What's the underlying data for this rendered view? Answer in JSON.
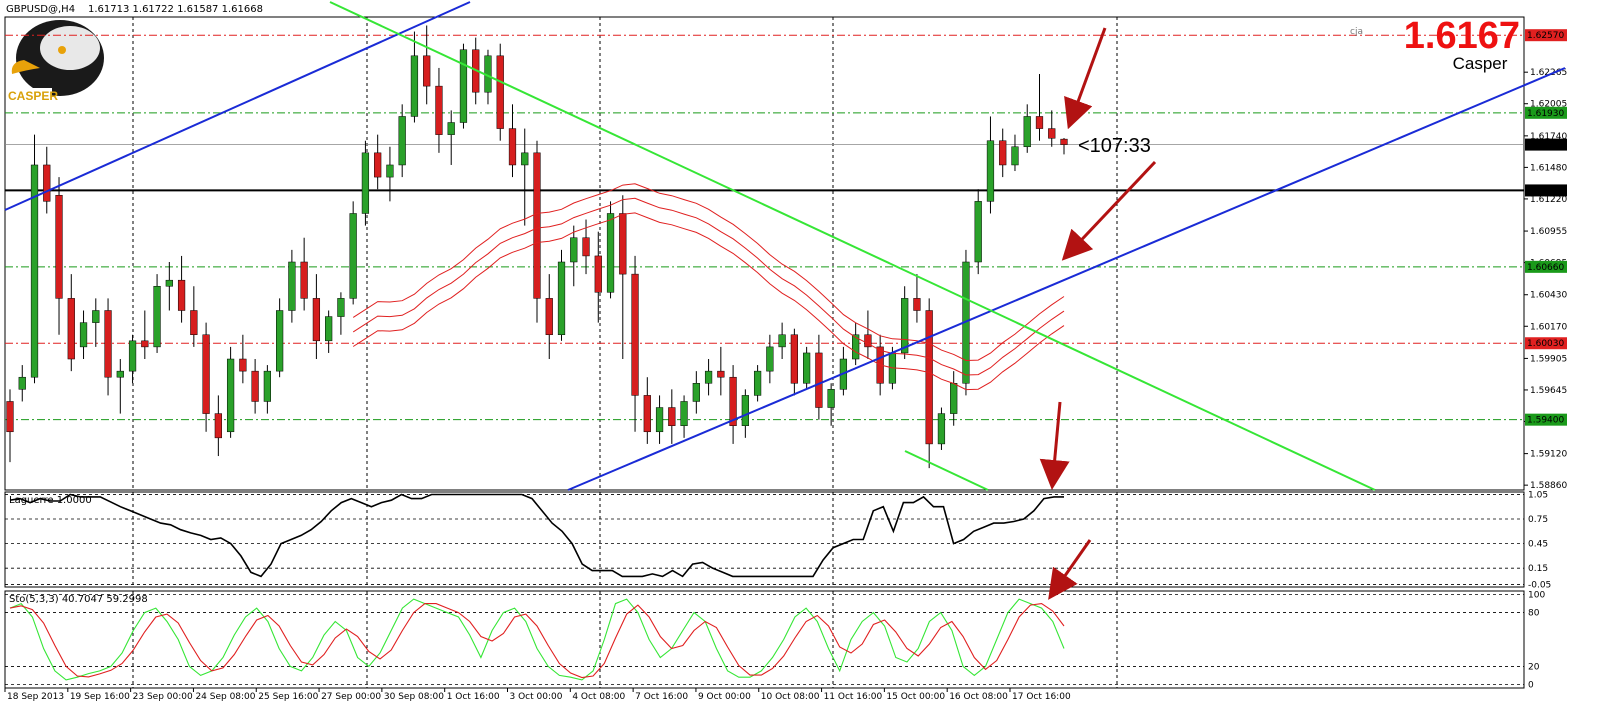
{
  "header": {
    "symbol": "GBPUSD@,H4",
    "ohlc": "1.61713 1.61722 1.61587 1.61668"
  },
  "logo": {
    "text": "CASPER"
  },
  "price_badge": {
    "value": "1.6167",
    "label": "Casper"
  },
  "timer": "<107:33",
  "cja": "cja",
  "colors": {
    "bull": "#2aa12a",
    "bear": "#d61e1e",
    "trend_blue": "#1a2bd6",
    "trend_green": "#36e636",
    "ma_red": "#e02020",
    "arrow": "#b21212",
    "level_red": "#e02020",
    "level_green": "#1a9a1a"
  },
  "price_levels": [
    {
      "label": "1.62570",
      "price": 1.6257,
      "color": "#e02020",
      "style": "dashdot"
    },
    {
      "label": "1.61930",
      "price": 1.6193,
      "color": "#1a9a1a",
      "style": "dashdot"
    },
    {
      "label": "1.61668",
      "price": 1.61668,
      "color": "#000000",
      "style": "current"
    },
    {
      "label": "1.61290",
      "price": 1.6129,
      "color": "#000000",
      "style": "solid"
    },
    {
      "label": "1.60660",
      "price": 1.6066,
      "color": "#1a9a1a",
      "style": "dashdot"
    },
    {
      "label": "1.60030",
      "price": 1.6003,
      "color": "#e02020",
      "style": "dashdot"
    },
    {
      "label": "1.59400",
      "price": 1.594,
      "color": "#1a9a1a",
      "style": "dashdot"
    }
  ],
  "price_ticks": [
    "1.62265",
    "1.62005",
    "1.61740",
    "1.61480",
    "1.61220",
    "1.60955",
    "1.60695",
    "1.60430",
    "1.60170",
    "1.59905",
    "1.59645",
    "1.59385",
    "1.59120",
    "1.58860"
  ],
  "laguerre": {
    "title": "Laguerre 1.0000",
    "ticks": [
      "1.05",
      "0.75",
      "0.45",
      "0.15",
      "-0.05"
    ],
    "values": [
      0.98,
      1.0,
      0.95,
      1.0,
      0.97,
      0.97,
      1.05,
      1.02,
      1.02,
      1.02,
      0.96,
      0.9,
      0.85,
      0.8,
      0.75,
      0.7,
      0.68,
      0.62,
      0.58,
      0.55,
      0.5,
      0.52,
      0.45,
      0.3,
      0.1,
      0.05,
      0.2,
      0.45,
      0.5,
      0.55,
      0.62,
      0.72,
      0.85,
      0.95,
      1.0,
      0.95,
      0.9,
      0.95,
      0.98,
      1.05,
      1.0,
      1.0,
      1.05,
      1.05,
      1.05,
      1.05,
      1.05,
      1.05,
      1.05,
      1.05,
      1.05,
      1.05,
      1.0,
      0.85,
      0.7,
      0.6,
      0.45,
      0.2,
      0.12,
      0.12,
      0.12,
      0.05,
      0.05,
      0.05,
      0.08,
      0.05,
      0.12,
      0.05,
      0.2,
      0.22,
      0.15,
      0.1,
      0.05,
      0.05,
      0.05,
      0.05,
      0.05,
      0.05,
      0.05,
      0.05,
      0.05,
      0.25,
      0.4,
      0.45,
      0.5,
      0.5,
      0.85,
      0.9,
      0.6,
      0.95,
      0.95,
      1.02,
      0.9,
      0.9,
      0.45,
      0.5,
      0.6,
      0.65,
      0.7,
      0.7,
      0.72,
      0.75,
      0.85,
      1.0,
      1.02,
      1.02
    ]
  },
  "stochastic": {
    "title": "Sto(5,3,3) 40.7047 59.2998",
    "ticks": [
      "100",
      "80",
      "20",
      "0"
    ],
    "main": [
      85,
      90,
      75,
      40,
      15,
      5,
      8,
      12,
      15,
      20,
      35,
      60,
      80,
      85,
      70,
      50,
      20,
      10,
      15,
      30,
      55,
      75,
      85,
      70,
      40,
      20,
      15,
      30,
      55,
      70,
      60,
      30,
      20,
      35,
      60,
      85,
      95,
      90,
      85,
      80,
      75,
      55,
      30,
      60,
      80,
      85,
      70,
      40,
      20,
      10,
      8,
      5,
      15,
      50,
      90,
      95,
      80,
      50,
      30,
      40,
      60,
      80,
      70,
      40,
      15,
      8,
      8,
      15,
      30,
      50,
      75,
      85,
      70,
      40,
      15,
      50,
      70,
      80,
      65,
      30,
      25,
      40,
      70,
      80,
      60,
      20,
      10,
      20,
      50,
      80,
      95,
      90,
      85,
      70,
      40
    ]
  },
  "time_labels": [
    "18 Sep 2013",
    "19 Sep 16:00",
    "23 Sep 00:00",
    "24 Sep 08:00",
    "25 Sep 16:00",
    "27 Sep 00:00",
    "30 Sep 08:00",
    "1 Oct 16:00",
    "3 Oct 00:00",
    "4 Oct 08:00",
    "7 Oct 16:00",
    "9 Oct 00:00",
    "10 Oct 08:00",
    "11 Oct 16:00",
    "15 Oct 00:00",
    "16 Oct 08:00",
    "17 Oct 16:00"
  ],
  "candles": [
    [
      1.5955,
      1.5965,
      1.5905,
      1.593
    ],
    [
      1.5965,
      1.5985,
      1.5955,
      1.5975
    ],
    [
      1.5975,
      1.6175,
      1.597,
      1.615
    ],
    [
      1.615,
      1.6165,
      1.611,
      1.612
    ],
    [
      1.6125,
      1.614,
      1.601,
      1.604
    ],
    [
      1.604,
      1.606,
      1.598,
      1.599
    ],
    [
      1.6,
      1.603,
      1.599,
      1.602
    ],
    [
      1.602,
      1.604,
      1.6,
      1.603
    ],
    [
      1.603,
      1.604,
      1.596,
      1.5975
    ],
    [
      1.5975,
      1.599,
      1.5945,
      1.598
    ],
    [
      1.598,
      1.601,
      1.597,
      1.6005
    ],
    [
      1.6005,
      1.603,
      1.599,
      1.6
    ],
    [
      1.6,
      1.606,
      1.5995,
      1.605
    ],
    [
      1.605,
      1.607,
      1.603,
      1.6055
    ],
    [
      1.6055,
      1.6075,
      1.602,
      1.603
    ],
    [
      1.603,
      1.605,
      1.6,
      1.601
    ],
    [
      1.601,
      1.602,
      1.593,
      1.5945
    ],
    [
      1.5945,
      1.596,
      1.591,
      1.5925
    ],
    [
      1.593,
      1.6,
      1.5925,
      1.599
    ],
    [
      1.599,
      1.601,
      1.597,
      1.598
    ],
    [
      1.598,
      1.599,
      1.5945,
      1.5955
    ],
    [
      1.5955,
      1.5985,
      1.5945,
      1.598
    ],
    [
      1.598,
      1.604,
      1.5975,
      1.603
    ],
    [
      1.603,
      1.608,
      1.602,
      1.607
    ],
    [
      1.607,
      1.609,
      1.603,
      1.604
    ],
    [
      1.604,
      1.606,
      1.599,
      1.6005
    ],
    [
      1.6005,
      1.603,
      1.5995,
      1.6025
    ],
    [
      1.6025,
      1.6045,
      1.601,
      1.604
    ],
    [
      1.604,
      1.612,
      1.6035,
      1.611
    ],
    [
      1.611,
      1.617,
      1.61,
      1.616
    ],
    [
      1.616,
      1.6175,
      1.613,
      1.614
    ],
    [
      1.614,
      1.6165,
      1.612,
      1.615
    ],
    [
      1.615,
      1.62,
      1.614,
      1.619
    ],
    [
      1.619,
      1.626,
      1.6185,
      1.624
    ],
    [
      1.624,
      1.6265,
      1.62,
      1.6215
    ],
    [
      1.6215,
      1.623,
      1.616,
      1.6175
    ],
    [
      1.6175,
      1.6195,
      1.615,
      1.6185
    ],
    [
      1.6185,
      1.625,
      1.618,
      1.6245
    ],
    [
      1.6245,
      1.6255,
      1.62,
      1.621
    ],
    [
      1.621,
      1.6245,
      1.62,
      1.624
    ],
    [
      1.624,
      1.625,
      1.617,
      1.618
    ],
    [
      1.618,
      1.62,
      1.614,
      1.615
    ],
    [
      1.615,
      1.618,
      1.61,
      1.616
    ],
    [
      1.616,
      1.617,
      1.602,
      1.604
    ],
    [
      1.604,
      1.606,
      1.599,
      1.601
    ],
    [
      1.601,
      1.608,
      1.6005,
      1.607
    ],
    [
      1.607,
      1.61,
      1.605,
      1.609
    ],
    [
      1.609,
      1.6105,
      1.606,
      1.6075
    ],
    [
      1.6075,
      1.6095,
      1.602,
      1.6045
    ],
    [
      1.6045,
      1.612,
      1.604,
      1.611
    ],
    [
      1.611,
      1.6125,
      1.599,
      1.606
    ],
    [
      1.606,
      1.6075,
      1.593,
      1.596
    ],
    [
      1.596,
      1.5975,
      1.592,
      1.593
    ],
    [
      1.593,
      1.596,
      1.592,
      1.595
    ],
    [
      1.595,
      1.5965,
      1.592,
      1.5935
    ],
    [
      1.5935,
      1.596,
      1.5925,
      1.5955
    ],
    [
      1.5955,
      1.598,
      1.5945,
      1.597
    ],
    [
      1.597,
      1.599,
      1.596,
      1.598
    ],
    [
      1.598,
      1.6,
      1.596,
      1.5975
    ],
    [
      1.5975,
      1.5985,
      1.592,
      1.5935
    ],
    [
      1.5935,
      1.5965,
      1.5925,
      1.596
    ],
    [
      1.596,
      1.5985,
      1.5955,
      1.598
    ],
    [
      1.598,
      1.601,
      1.597,
      1.6
    ],
    [
      1.6,
      1.602,
      1.599,
      1.601
    ],
    [
      1.601,
      1.6015,
      1.596,
      1.597
    ],
    [
      1.597,
      1.6,
      1.5965,
      1.5995
    ],
    [
      1.5995,
      1.601,
      1.594,
      1.595
    ],
    [
      1.595,
      1.597,
      1.5935,
      1.5965
    ],
    [
      1.5965,
      1.6,
      1.596,
      1.599
    ],
    [
      1.599,
      1.602,
      1.5985,
      1.601
    ],
    [
      1.601,
      1.603,
      1.599,
      1.6
    ],
    [
      1.6,
      1.601,
      1.596,
      1.597
    ],
    [
      1.597,
      1.6,
      1.5965,
      1.5995
    ],
    [
      1.5995,
      1.605,
      1.599,
      1.604
    ],
    [
      1.604,
      1.606,
      1.602,
      1.603
    ],
    [
      1.603,
      1.604,
      1.59,
      1.592
    ],
    [
      1.592,
      1.595,
      1.5915,
      1.5945
    ],
    [
      1.5945,
      1.598,
      1.5935,
      1.597
    ],
    [
      1.597,
      1.608,
      1.596,
      1.607
    ],
    [
      1.607,
      1.613,
      1.606,
      1.612
    ],
    [
      1.612,
      1.619,
      1.611,
      1.617
    ],
    [
      1.617,
      1.618,
      1.614,
      1.615
    ],
    [
      1.615,
      1.6175,
      1.6145,
      1.6165
    ],
    [
      1.6165,
      1.62,
      1.616,
      1.619
    ],
    [
      1.619,
      1.6225,
      1.617,
      1.618
    ],
    [
      1.618,
      1.6195,
      1.6165,
      1.6172
    ],
    [
      1.61713,
      1.61722,
      1.61587,
      1.61668
    ]
  ]
}
